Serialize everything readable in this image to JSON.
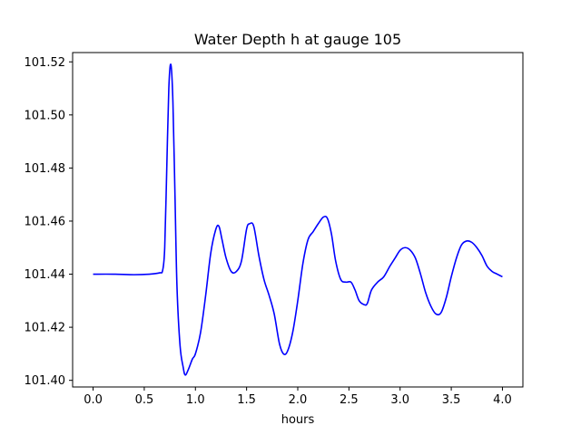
{
  "chart_data": {
    "type": "line",
    "title": "Water Depth h at gauge 105",
    "xlabel": "hours",
    "ylabel": "",
    "xlim": [
      -0.2,
      4.2
    ],
    "ylim": [
      101.3975,
      101.5235
    ],
    "x_ticks": [
      0.0,
      0.5,
      1.0,
      1.5,
      2.0,
      2.5,
      3.0,
      3.5,
      4.0
    ],
    "x_tick_labels": [
      "0.0",
      "0.5",
      "1.0",
      "1.5",
      "2.0",
      "2.5",
      "3.0",
      "3.5",
      "4.0"
    ],
    "y_ticks": [
      101.4,
      101.42,
      101.44,
      101.46,
      101.48,
      101.5,
      101.52
    ],
    "y_tick_labels": [
      "101.40",
      "101.42",
      "101.44",
      "101.46",
      "101.48",
      "101.50",
      "101.52"
    ],
    "grid": false,
    "legend": "none",
    "series": [
      {
        "color": "#0000ff",
        "x": [
          0.0,
          0.2,
          0.4,
          0.55,
          0.65,
          0.68,
          0.7,
          0.72,
          0.74,
          0.76,
          0.78,
          0.8,
          0.82,
          0.85,
          0.88,
          0.9,
          0.93,
          0.97,
          1.0,
          1.05,
          1.1,
          1.15,
          1.2,
          1.23,
          1.26,
          1.3,
          1.35,
          1.4,
          1.45,
          1.5,
          1.53,
          1.57,
          1.62,
          1.67,
          1.72,
          1.77,
          1.82,
          1.86,
          1.9,
          1.95,
          2.0,
          2.05,
          2.1,
          2.15,
          2.2,
          2.25,
          2.29,
          2.33,
          2.37,
          2.42,
          2.47,
          2.52,
          2.56,
          2.6,
          2.65,
          2.68,
          2.72,
          2.78,
          2.84,
          2.9,
          2.95,
          3.0,
          3.05,
          3.1,
          3.15,
          3.2,
          3.25,
          3.3,
          3.35,
          3.4,
          3.45,
          3.5,
          3.55,
          3.6,
          3.65,
          3.7,
          3.75,
          3.8,
          3.85,
          3.9,
          3.95,
          4.0
        ],
        "values": [
          101.44,
          101.44,
          101.4398,
          101.44,
          101.4405,
          101.4415,
          101.45,
          101.48,
          101.51,
          101.519,
          101.505,
          101.47,
          101.435,
          101.413,
          101.405,
          101.402,
          101.404,
          101.408,
          101.41,
          101.418,
          101.432,
          101.448,
          101.457,
          101.458,
          101.453,
          101.446,
          101.441,
          101.441,
          101.445,
          101.457,
          101.459,
          101.458,
          101.447,
          101.438,
          101.432,
          101.425,
          101.414,
          101.41,
          101.411,
          101.418,
          101.43,
          101.444,
          101.453,
          101.456,
          101.459,
          101.4615,
          101.461,
          101.455,
          101.445,
          101.438,
          101.437,
          101.437,
          101.434,
          101.43,
          101.4285,
          101.429,
          101.434,
          101.437,
          101.439,
          101.443,
          101.446,
          101.449,
          101.45,
          101.449,
          101.446,
          101.44,
          101.433,
          101.428,
          101.425,
          101.4255,
          101.431,
          101.439,
          101.446,
          101.451,
          101.4525,
          101.452,
          101.45,
          101.447,
          101.443,
          101.441,
          101.44,
          101.439
        ]
      }
    ]
  }
}
